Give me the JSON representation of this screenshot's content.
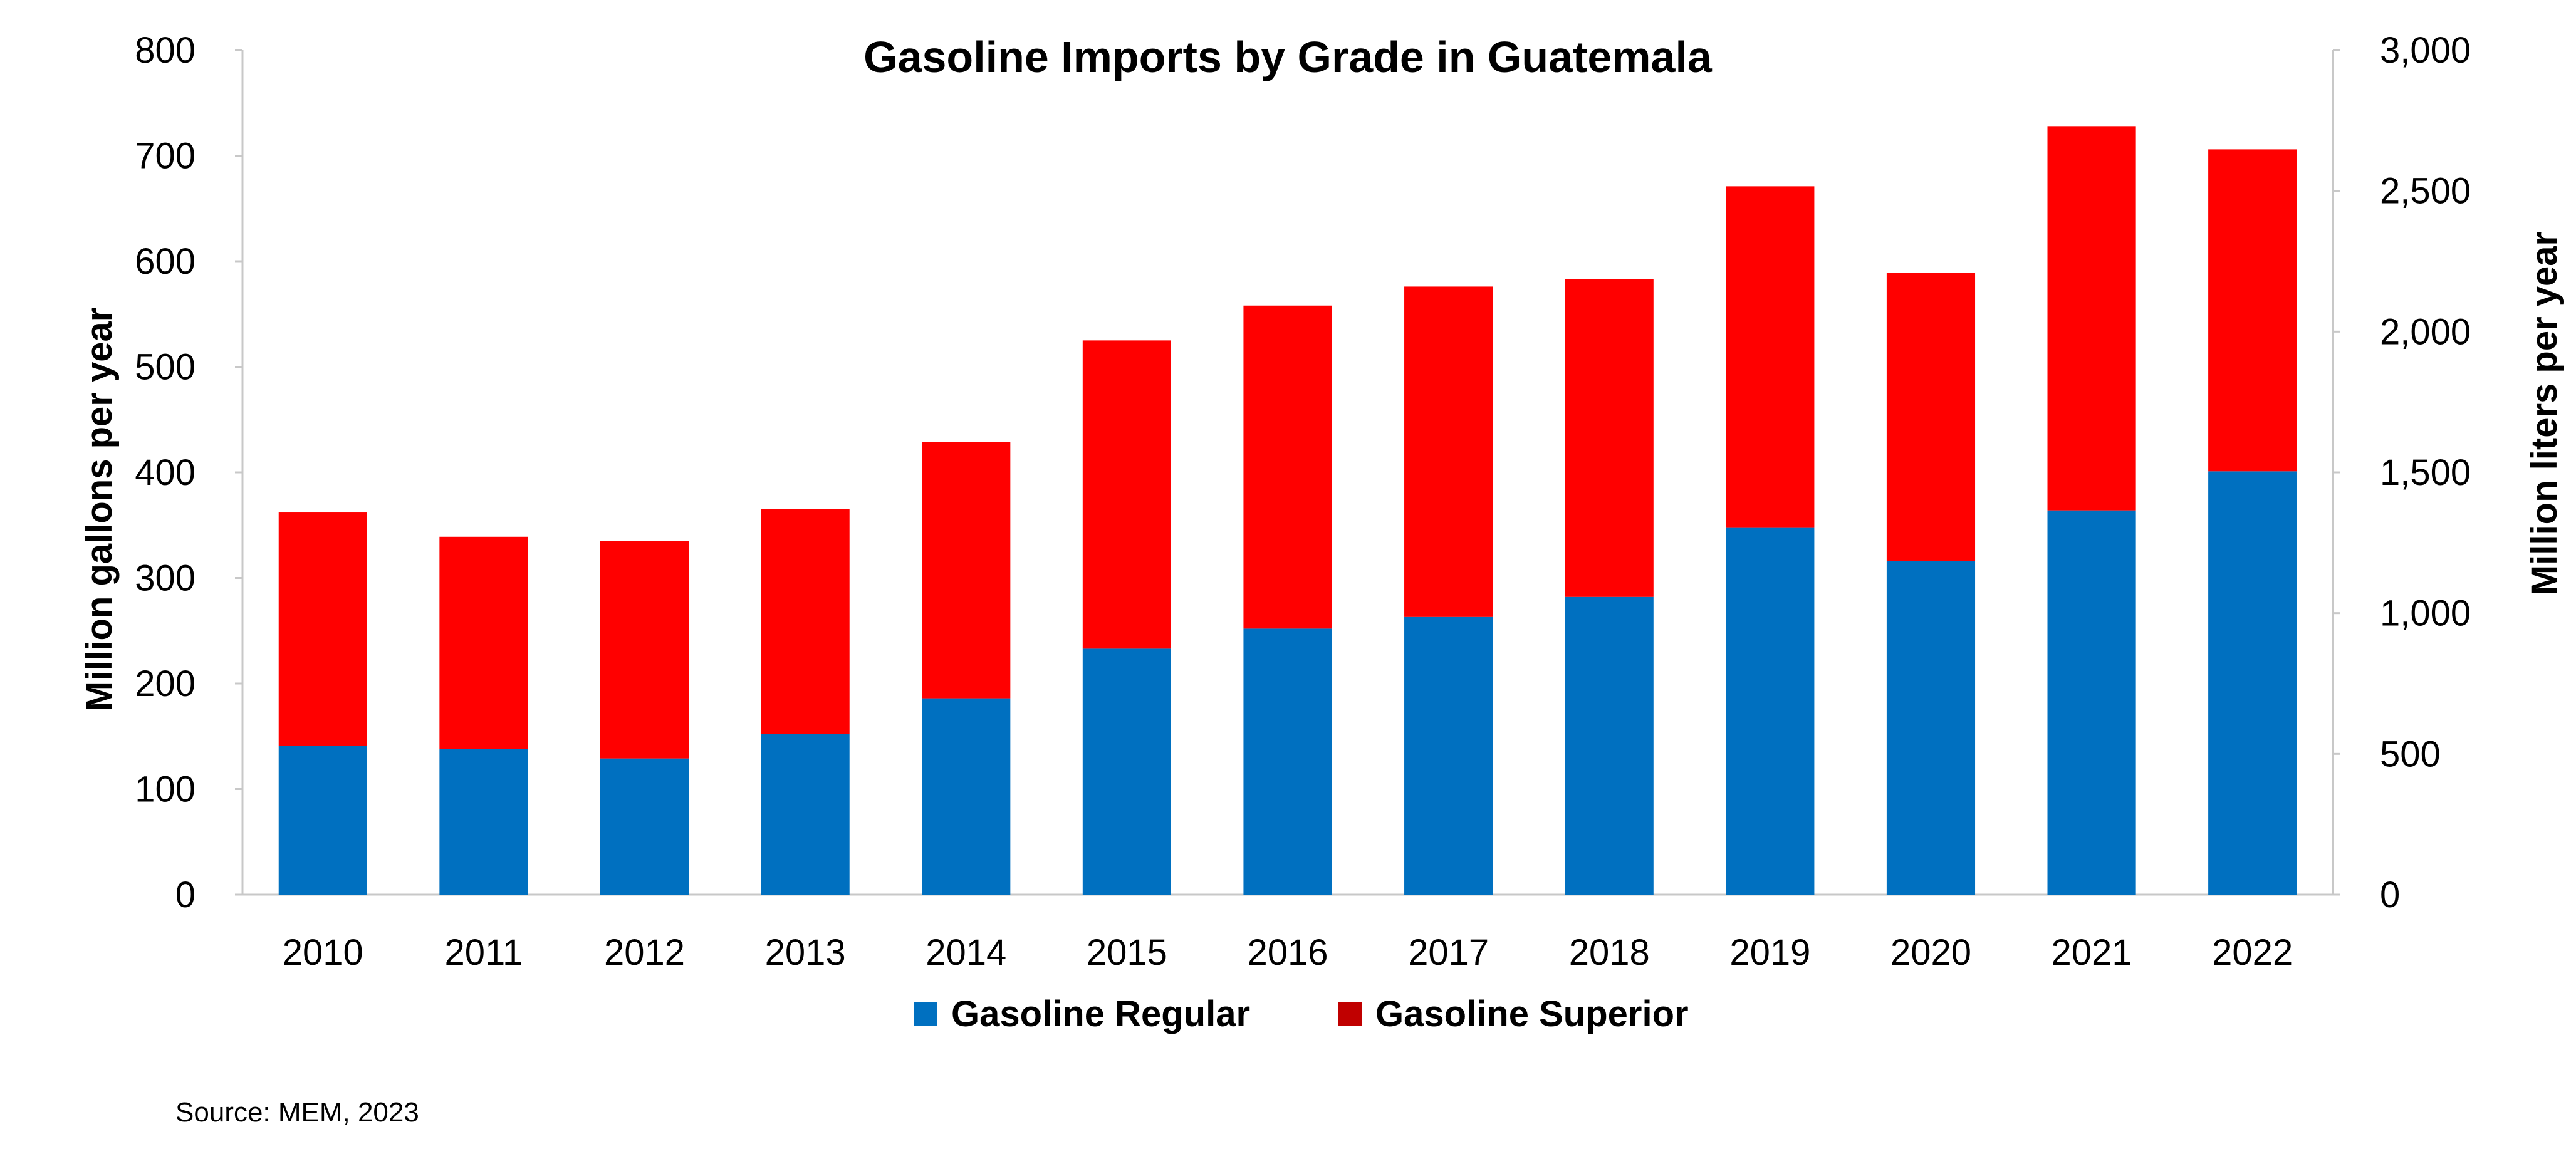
{
  "chart_data": {
    "type": "bar",
    "stacked": true,
    "title": "Gasoline Imports by Grade in Guatemala",
    "ylabel": "Million gallons per year",
    "y2label": "Million liters per year",
    "categories": [
      "2010",
      "2011",
      "2012",
      "2013",
      "2014",
      "2015",
      "2016",
      "2017",
      "2018",
      "2019",
      "2020",
      "2021",
      "2022"
    ],
    "series": [
      {
        "name": "Gasoline Regular",
        "color": "#0070C0",
        "values": [
          141,
          138,
          129,
          152,
          186,
          233,
          252,
          263,
          282,
          348,
          316,
          364,
          401
        ]
      },
      {
        "name": "Gasoline Superior",
        "color": "#FF0000",
        "values": [
          221,
          201,
          206,
          213,
          243,
          292,
          306,
          313,
          301,
          323,
          273,
          364,
          305
        ]
      }
    ],
    "legend_swatch_colors": [
      "#0070C0",
      "#C00000"
    ],
    "ylim": [
      0,
      800
    ],
    "yticks": [
      "0",
      "100",
      "200",
      "300",
      "400",
      "500",
      "600",
      "700",
      "800"
    ],
    "y2lim": [
      0,
      3000
    ],
    "y2ticks": [
      "0",
      "500",
      "1,000",
      "1,500",
      "2,000",
      "2,500",
      "3,000"
    ],
    "legend_position": "bottom",
    "grid": false,
    "source": "Source: MEM, 2023"
  }
}
